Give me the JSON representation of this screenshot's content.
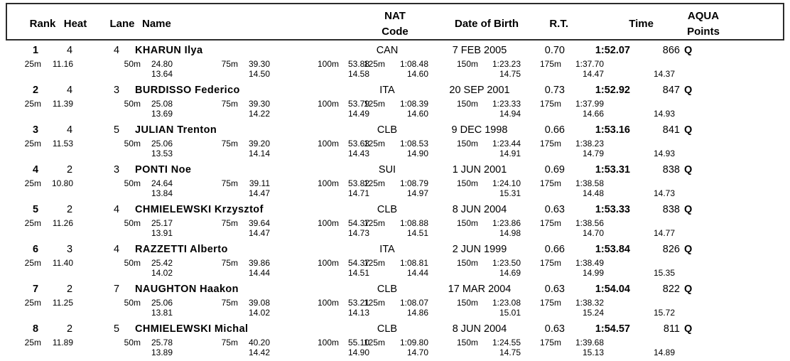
{
  "table": {
    "header": {
      "rank": "Rank",
      "heat": "Heat",
      "lane": "Lane",
      "name": "Name",
      "nat_line1": "NAT",
      "nat_line2": "Code",
      "dob": "Date of Birth",
      "rt": "R.T.",
      "time": "Time",
      "aqua_line1": "AQUA",
      "aqua_line2": "Points"
    },
    "split_labels": {
      "s25": "25m",
      "s50": "50m",
      "s75": "75m",
      "s100": "100m",
      "s125": "125m",
      "s150": "150m",
      "s175": "175m"
    }
  },
  "rows": [
    {
      "rank": "1",
      "heat": "4",
      "lane": "4",
      "name": "KHARUN Ilya",
      "nat": "CAN",
      "dob": "7 FEB 2005",
      "rt": "0.70",
      "time": "1:52.07",
      "points": "866",
      "qualified": "Q",
      "splits": {
        "s25": "11.16",
        "s50": "24.80",
        "s75": "39.30",
        "s100": "53.88",
        "s125": "1:08.48",
        "s150": "1:23.23",
        "s175": "1:37.70"
      },
      "segments": {
        "d50": "13.64",
        "d75": "14.50",
        "d100": "14.58",
        "d125": "14.60",
        "d150": "14.75",
        "d175": "14.47",
        "d200": "14.37"
      }
    },
    {
      "rank": "2",
      "heat": "4",
      "lane": "3",
      "name": "BURDISSO Federico",
      "nat": "ITA",
      "dob": "20 SEP 2001",
      "rt": "0.73",
      "time": "1:52.92",
      "points": "847",
      "qualified": "Q",
      "splits": {
        "s25": "11.39",
        "s50": "25.08",
        "s75": "39.30",
        "s100": "53.79",
        "s125": "1:08.39",
        "s150": "1:23.33",
        "s175": "1:37.99"
      },
      "segments": {
        "d50": "13.69",
        "d75": "14.22",
        "d100": "14.49",
        "d125": "14.60",
        "d150": "14.94",
        "d175": "14.66",
        "d200": "14.93"
      }
    },
    {
      "rank": "3",
      "heat": "4",
      "lane": "5",
      "name": "JULIAN Trenton",
      "nat": "CLB",
      "dob": "9 DEC 1998",
      "rt": "0.66",
      "time": "1:53.16",
      "points": "841",
      "qualified": "Q",
      "splits": {
        "s25": "11.53",
        "s50": "25.06",
        "s75": "39.20",
        "s100": "53.63",
        "s125": "1:08.53",
        "s150": "1:23.44",
        "s175": "1:38.23"
      },
      "segments": {
        "d50": "13.53",
        "d75": "14.14",
        "d100": "14.43",
        "d125": "14.90",
        "d150": "14.91",
        "d175": "14.79",
        "d200": "14.93"
      }
    },
    {
      "rank": "4",
      "heat": "2",
      "lane": "3",
      "name": "PONTI Noe",
      "nat": "SUI",
      "dob": "1 JUN 2001",
      "rt": "0.69",
      "time": "1:53.31",
      "points": "838",
      "qualified": "Q",
      "splits": {
        "s25": "10.80",
        "s50": "24.64",
        "s75": "39.11",
        "s100": "53.82",
        "s125": "1:08.79",
        "s150": "1:24.10",
        "s175": "1:38.58"
      },
      "segments": {
        "d50": "13.84",
        "d75": "14.47",
        "d100": "14.71",
        "d125": "14.97",
        "d150": "15.31",
        "d175": "14.48",
        "d200": "14.73"
      }
    },
    {
      "rank": "5",
      "heat": "2",
      "lane": "4",
      "name": "CHMIELEWSKI Krzysztof",
      "nat": "CLB",
      "dob": "8 JUN 2004",
      "rt": "0.63",
      "time": "1:53.33",
      "points": "838",
      "qualified": "Q",
      "splits": {
        "s25": "11.26",
        "s50": "25.17",
        "s75": "39.64",
        "s100": "54.37",
        "s125": "1:08.88",
        "s150": "1:23.86",
        "s175": "1:38.56"
      },
      "segments": {
        "d50": "13.91",
        "d75": "14.47",
        "d100": "14.73",
        "d125": "14.51",
        "d150": "14.98",
        "d175": "14.70",
        "d200": "14.77"
      }
    },
    {
      "rank": "6",
      "heat": "3",
      "lane": "4",
      "name": "RAZZETTI Alberto",
      "nat": "ITA",
      "dob": "2 JUN 1999",
      "rt": "0.66",
      "time": "1:53.84",
      "points": "826",
      "qualified": "Q",
      "splits": {
        "s25": "11.40",
        "s50": "25.42",
        "s75": "39.86",
        "s100": "54.37",
        "s125": "1:08.81",
        "s150": "1:23.50",
        "s175": "1:38.49"
      },
      "segments": {
        "d50": "14.02",
        "d75": "14.44",
        "d100": "14.51",
        "d125": "14.44",
        "d150": "14.69",
        "d175": "14.99",
        "d200": "15.35"
      }
    },
    {
      "rank": "7",
      "heat": "2",
      "lane": "7",
      "name": "NAUGHTON Haakon",
      "nat": "CLB",
      "dob": "17 MAR 2004",
      "rt": "0.63",
      "time": "1:54.04",
      "points": "822",
      "qualified": "Q",
      "splits": {
        "s25": "11.25",
        "s50": "25.06",
        "s75": "39.08",
        "s100": "53.21",
        "s125": "1:08.07",
        "s150": "1:23.08",
        "s175": "1:38.32"
      },
      "segments": {
        "d50": "13.81",
        "d75": "14.02",
        "d100": "14.13",
        "d125": "14.86",
        "d150": "15.01",
        "d175": "15.24",
        "d200": "15.72"
      }
    },
    {
      "rank": "8",
      "heat": "2",
      "lane": "5",
      "name": "CHMIELEWSKI Michal",
      "nat": "CLB",
      "dob": "8 JUN 2004",
      "rt": "0.63",
      "time": "1:54.57",
      "points": "811",
      "qualified": "Q",
      "splits": {
        "s25": "11.89",
        "s50": "25.78",
        "s75": "40.20",
        "s100": "55.10",
        "s125": "1:09.80",
        "s150": "1:24.55",
        "s175": "1:39.68"
      },
      "segments": {
        "d50": "13.89",
        "d75": "14.42",
        "d100": "14.90",
        "d125": "14.70",
        "d150": "14.75",
        "d175": "15.13",
        "d200": "14.89"
      }
    }
  ]
}
